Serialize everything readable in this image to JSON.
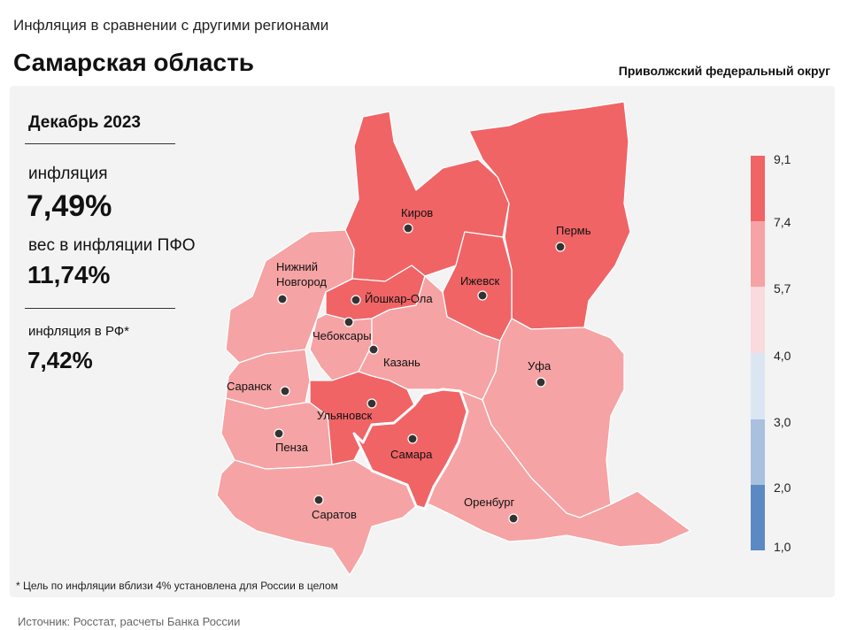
{
  "header": {
    "subtitle": "Инфляция в сравнении с другими регионами",
    "title": "Самарская область",
    "district": "Приволжский федеральный округ"
  },
  "stats": {
    "period": "Декабрь 2023",
    "inflation_label": "инфляция",
    "inflation_value": "7,49%",
    "weight_label": "вес в инфляции ПФО",
    "weight_value": "11,74%",
    "rf_label": "инфляция в РФ*",
    "rf_value": "7,42%"
  },
  "legend": {
    "ticks": [
      "9,1",
      "7,4",
      "5,7",
      "4,0",
      "3,0",
      "2,0",
      "1,0"
    ],
    "colors": [
      "#f06466",
      "#f5a3a4",
      "#fbdadd",
      "#dce6f3",
      "#a9c0df",
      "#5b89c3"
    ]
  },
  "cities": [
    {
      "name": "Киров"
    },
    {
      "name": "Пермь"
    },
    {
      "name": "Нижний\nНовгород",
      "line1": "Нижний",
      "line2": "Новгород"
    },
    {
      "name": "Йошкар-Ола"
    },
    {
      "name": "Ижевск"
    },
    {
      "name": "Чебоксары"
    },
    {
      "name": "Казань"
    },
    {
      "name": "Уфа"
    },
    {
      "name": "Саранск"
    },
    {
      "name": "Ульяновск"
    },
    {
      "name": "Самара"
    },
    {
      "name": "Пенза"
    },
    {
      "name": "Саратов"
    },
    {
      "name": "Оренбург"
    }
  ],
  "colors": {
    "high": "#f06466",
    "mid": "#f5a3a4",
    "highlight_border": "#ffffff"
  },
  "footnote": "* Цель по инфляции вблизи 4% установлена для России в целом",
  "source": "Источник: Росстат, расчеты Банка России"
}
